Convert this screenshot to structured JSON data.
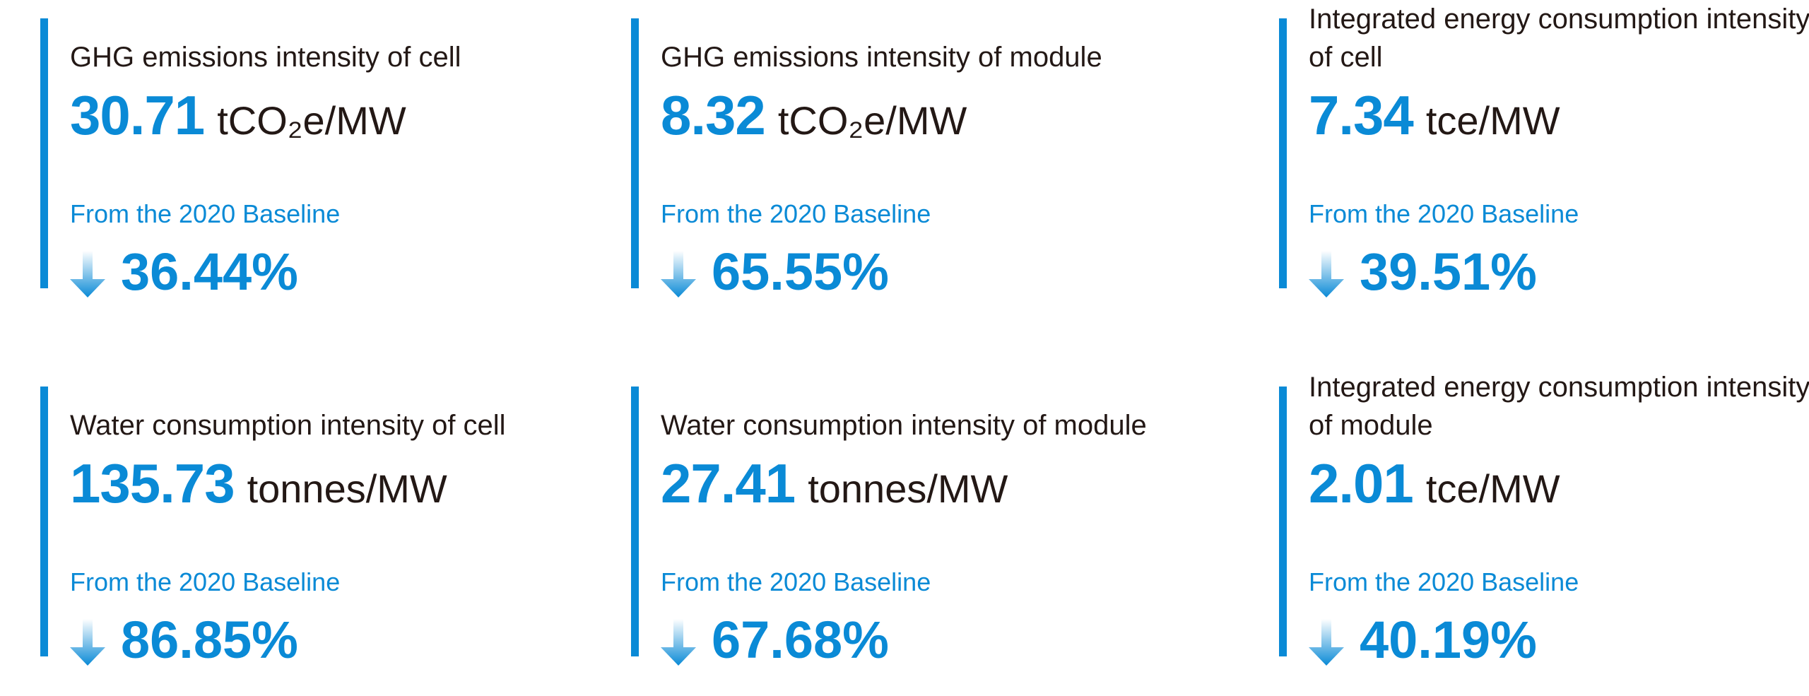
{
  "accent_color": "#0a8ad6",
  "text_color": "#231815",
  "metrics": [
    {
      "title": "GHG emissions intensity of cell",
      "value": "30.71",
      "unit": "tCO₂e/MW",
      "baseline_label": "From the 2020 Baseline",
      "direction_icon": "arrow-down-icon",
      "change": "36.44%"
    },
    {
      "title": "GHG emissions intensity of module",
      "value": "8.32",
      "unit": "tCO₂e/MW",
      "baseline_label": "From the 2020 Baseline",
      "direction_icon": "arrow-down-icon",
      "change": "65.55%"
    },
    {
      "title": "Integrated energy consumption intensity of cell",
      "value": "7.34",
      "unit": "tce/MW",
      "baseline_label": "From the 2020 Baseline",
      "direction_icon": "arrow-down-icon",
      "change": "39.51%"
    },
    {
      "title": "Water consumption intensity of cell",
      "value": "135.73",
      "unit": "tonnes/MW",
      "baseline_label": "From the 2020 Baseline",
      "direction_icon": "arrow-down-icon",
      "change": "86.85%"
    },
    {
      "title": "Water consumption intensity of module",
      "value": "27.41",
      "unit": "tonnes/MW",
      "baseline_label": "From the 2020 Baseline",
      "direction_icon": "arrow-down-icon",
      "change": "67.68%"
    },
    {
      "title": "Integrated energy consumption intensity of module",
      "value": "2.01",
      "unit": "tce/MW",
      "baseline_label": "From the 2020 Baseline",
      "direction_icon": "arrow-down-icon",
      "change": "40.19%"
    }
  ]
}
